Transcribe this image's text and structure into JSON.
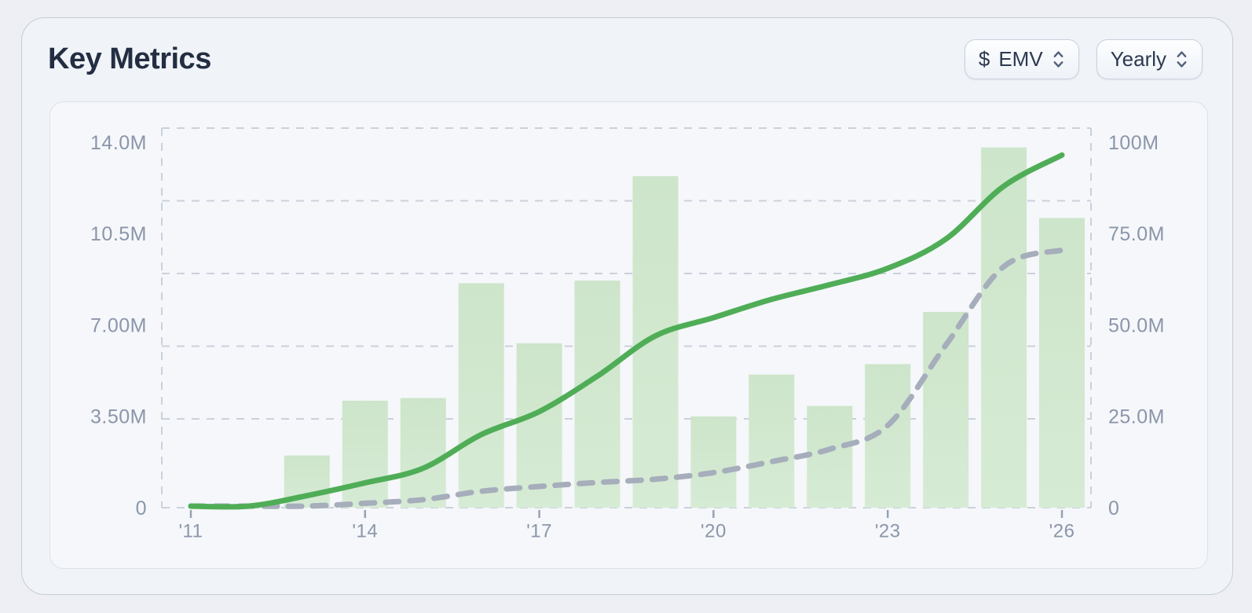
{
  "header": {
    "title": "Key Metrics",
    "metric_dropdown": {
      "prefix": "$",
      "value": "EMV"
    },
    "period_dropdown": {
      "value": "Yearly"
    }
  },
  "chart_data": {
    "type": "combo (bar + 2 smooth lines, dual y-axis)",
    "title": "Key Metrics",
    "x": {
      "years": [
        2011,
        2012,
        2013,
        2014,
        2015,
        2016,
        2017,
        2018,
        2019,
        2020,
        2021,
        2022,
        2023,
        2024,
        2025,
        2026
      ],
      "tick_labels": [
        "'11",
        "'14",
        "'17",
        "'20",
        "'23",
        "'26"
      ],
      "tick_year_indexes": [
        0,
        3,
        6,
        9,
        12,
        15
      ]
    },
    "left_axis": {
      "tick_labels": [
        "0",
        "3.50M",
        "7.00M",
        "10.5M",
        "14.0M"
      ],
      "tick_values": [
        0,
        3.5,
        7,
        10.5,
        14
      ],
      "range": [
        0,
        14
      ],
      "unit": "M"
    },
    "right_axis": {
      "tick_labels": [
        "0",
        "25.0M",
        "50.0M",
        "75.0M",
        "100M"
      ],
      "tick_values": [
        0,
        25,
        50,
        75,
        100
      ],
      "range": [
        0,
        100
      ],
      "unit": "M"
    },
    "grid": {
      "horizontal_gridlines": 5,
      "dashed_plot_border": true,
      "grid_on": true
    },
    "series": [
      {
        "id": "bars",
        "type": "bar",
        "axis": "left",
        "values": [
          null,
          null,
          2.0,
          4.1,
          4.2,
          8.6,
          6.3,
          8.7,
          12.7,
          3.5,
          5.1,
          3.9,
          5.5,
          7.5,
          13.8,
          11.1
        ]
      },
      {
        "id": "solid_line",
        "type": "line",
        "style": "solid",
        "axis": "right",
        "values": [
          0.2,
          0.4,
          3.3,
          6.8,
          10.8,
          20,
          26.3,
          36,
          47,
          52,
          57,
          61,
          65.5,
          73.5,
          88,
          96.5
        ]
      },
      {
        "id": "dashed_line",
        "type": "line",
        "style": "dashed",
        "axis": "right",
        "values": [
          0.05,
          0.1,
          0.3,
          1.2,
          2.2,
          4.5,
          5.8,
          6.9,
          7.8,
          9.6,
          12.6,
          16,
          22.5,
          44.5,
          66,
          70.5
        ]
      }
    ],
    "colors": {
      "bar_fill_top": "#cde5cb",
      "bar_fill_bottom": "#d6ebd4",
      "solid_line": "#50ad57",
      "dashed_line": "#a6adbb",
      "grid": "#cad1dc",
      "axis_text": "#8b96aa",
      "tick_mark": "#97a1b4"
    },
    "legend": "none"
  }
}
